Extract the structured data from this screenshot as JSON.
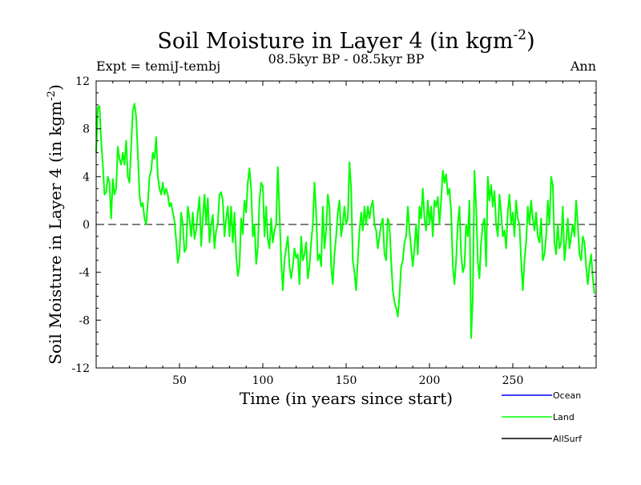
{
  "chart_data": {
    "type": "line",
    "title": "Soil Moisture in Layer 4 (in kgm",
    "title_sup": "-2",
    "title_close": ")",
    "subtitle_left": "Expt = temiJ-tembj",
    "subtitle_center": "08.5kyr BP - 08.5kyr BP",
    "subtitle_right": "Ann",
    "xlabel": "Time (in years since start)",
    "ylabel": "Soil Moisture in Layer 4 (in kgm",
    "ylabel_sup": "-2",
    "ylabel_close": ")",
    "xlim": [
      0,
      300
    ],
    "ylim": [
      -12,
      12
    ],
    "x_ticks": [
      50,
      100,
      150,
      200,
      250
    ],
    "y_ticks": [
      12,
      8,
      4,
      0,
      -4,
      -8,
      -12
    ],
    "zero_line": 0,
    "legend": [
      {
        "name": "Ocean",
        "color": "#0000ff"
      },
      {
        "name": "Land",
        "color": "#00ff00"
      },
      {
        "name": "AllSurf",
        "color": "#000000"
      }
    ],
    "series": [
      {
        "name": "Land",
        "color": "#00ff00",
        "points": [
          [
            0,
            6
          ],
          [
            1,
            9.8
          ],
          [
            2,
            9.9
          ],
          [
            3,
            7
          ],
          [
            4,
            5
          ],
          [
            5,
            2.5
          ],
          [
            6,
            2.7
          ],
          [
            7,
            4
          ],
          [
            8,
            3.5
          ],
          [
            9,
            0.5
          ],
          [
            10,
            3.8
          ],
          [
            11,
            2.5
          ],
          [
            12,
            3
          ],
          [
            13,
            6.5
          ],
          [
            14,
            5.5
          ],
          [
            15,
            5
          ],
          [
            16,
            6
          ],
          [
            17,
            5
          ],
          [
            18,
            7
          ],
          [
            19,
            4
          ],
          [
            20,
            3.5
          ],
          [
            21,
            6.5
          ],
          [
            22,
            9.5
          ],
          [
            23,
            10.1
          ],
          [
            24,
            9
          ],
          [
            25,
            6
          ],
          [
            26,
            2.5
          ],
          [
            27,
            1.5
          ],
          [
            28,
            1.8
          ],
          [
            29,
            0.5
          ],
          [
            30,
            0
          ],
          [
            31,
            1.8
          ],
          [
            32,
            4
          ],
          [
            33,
            4.5
          ],
          [
            34,
            6
          ],
          [
            35,
            5.5
          ],
          [
            36,
            7.3
          ],
          [
            37,
            4
          ],
          [
            38,
            3
          ],
          [
            39,
            2.5
          ],
          [
            40,
            3.5
          ],
          [
            41,
            2.5
          ],
          [
            42,
            3
          ],
          [
            43,
            2.5
          ],
          [
            44,
            1.5
          ],
          [
            45,
            1.8
          ],
          [
            46,
            1
          ],
          [
            47,
            0.3
          ],
          [
            48,
            -1.3
          ],
          [
            49,
            -3.2
          ],
          [
            50,
            -2.5
          ],
          [
            51,
            1
          ],
          [
            52,
            0
          ],
          [
            53,
            -2.3
          ],
          [
            54,
            -2
          ],
          [
            55,
            1.5
          ],
          [
            56,
            0.5
          ],
          [
            57,
            -1
          ],
          [
            58,
            1
          ],
          [
            59,
            -1.2
          ],
          [
            60,
            -0.5
          ],
          [
            61,
            1
          ],
          [
            62,
            2.3
          ],
          [
            63,
            -1.8
          ],
          [
            64,
            0.5
          ],
          [
            65,
            2.5
          ],
          [
            66,
            0
          ],
          [
            67,
            2.2
          ],
          [
            68,
            -1.5
          ],
          [
            69,
            0
          ],
          [
            70,
            0.8
          ],
          [
            71,
            -2
          ],
          [
            72,
            -0.5
          ],
          [
            73,
            0
          ],
          [
            74,
            2.5
          ],
          [
            75,
            2.7
          ],
          [
            76,
            2
          ],
          [
            77,
            -1
          ],
          [
            78,
            0.5
          ],
          [
            79,
            1.5
          ],
          [
            80,
            -1
          ],
          [
            81,
            1.5
          ],
          [
            82,
            -1.5
          ],
          [
            83,
            1
          ],
          [
            84,
            -2.5
          ],
          [
            85,
            -4.3
          ],
          [
            86,
            -3.5
          ],
          [
            87,
            0.5
          ],
          [
            88,
            -0.8
          ],
          [
            89,
            2
          ],
          [
            90,
            1
          ],
          [
            91,
            3.5
          ],
          [
            92,
            4.7
          ],
          [
            93,
            3
          ],
          [
            94,
            -1
          ],
          [
            95,
            0
          ],
          [
            96,
            -3.3
          ],
          [
            97,
            -2
          ],
          [
            98,
            2
          ],
          [
            99,
            3.5
          ],
          [
            100,
            3.2
          ],
          [
            101,
            -1
          ],
          [
            102,
            1.5
          ],
          [
            103,
            -1.2
          ],
          [
            104,
            -2
          ],
          [
            105,
            0.5
          ],
          [
            106,
            -1.5
          ],
          [
            107,
            -0.5
          ],
          [
            108,
            0
          ],
          [
            109,
            4.8
          ],
          [
            110,
            1
          ],
          [
            111,
            -3
          ],
          [
            112,
            -5.5
          ],
          [
            113,
            -3
          ],
          [
            114,
            -2
          ],
          [
            115,
            -1
          ],
          [
            116,
            -3.5
          ],
          [
            117,
            -4.5
          ],
          [
            118,
            -3.5
          ],
          [
            119,
            -2
          ],
          [
            120,
            -2.8
          ],
          [
            121,
            -2.5
          ],
          [
            122,
            -5
          ],
          [
            123,
            -1
          ],
          [
            124,
            -3
          ],
          [
            125,
            -2.5
          ],
          [
            126,
            -1.5
          ],
          [
            127,
            -4.5
          ],
          [
            128,
            -3.5
          ],
          [
            129,
            -1.5
          ],
          [
            130,
            0
          ],
          [
            131,
            3.5
          ],
          [
            132,
            1
          ],
          [
            133,
            -3
          ],
          [
            134,
            -2.5
          ],
          [
            135,
            -3.5
          ],
          [
            136,
            1.5
          ],
          [
            137,
            -2
          ],
          [
            138,
            -0.5
          ],
          [
            139,
            2.5
          ],
          [
            140,
            1.5
          ],
          [
            141,
            -3.5
          ],
          [
            142,
            -5
          ],
          [
            143,
            -2.5
          ],
          [
            144,
            -1
          ],
          [
            145,
            1
          ],
          [
            146,
            2
          ],
          [
            147,
            -1
          ],
          [
            148,
            0
          ],
          [
            149,
            1.5
          ],
          [
            150,
            0
          ],
          [
            151,
            0.5
          ],
          [
            152,
            5.2
          ],
          [
            153,
            3
          ],
          [
            154,
            -3
          ],
          [
            155,
            -4
          ],
          [
            156,
            -5.5
          ],
          [
            157,
            -3
          ],
          [
            158,
            -0.5
          ],
          [
            159,
            1
          ],
          [
            160,
            -0.5
          ],
          [
            161,
            1.5
          ],
          [
            162,
            0
          ],
          [
            163,
            1.5
          ],
          [
            164,
            0.5
          ],
          [
            165,
            1.5
          ],
          [
            166,
            2
          ],
          [
            167,
            0
          ],
          [
            168,
            -0.5
          ],
          [
            169,
            -2
          ],
          [
            170,
            -1
          ],
          [
            171,
            0
          ],
          [
            172,
            0.5
          ],
          [
            173,
            -2.5
          ],
          [
            174,
            -3
          ],
          [
            175,
            0.5
          ],
          [
            176,
            0
          ],
          [
            177,
            -3
          ],
          [
            178,
            -5.5
          ],
          [
            179,
            -6.5
          ],
          [
            180,
            -7
          ],
          [
            181,
            -7.7
          ],
          [
            182,
            -6
          ],
          [
            183,
            -3.5
          ],
          [
            184,
            -3
          ],
          [
            185,
            -1.5
          ],
          [
            186,
            -1
          ],
          [
            187,
            1.5
          ],
          [
            188,
            -0.5
          ],
          [
            189,
            -2
          ],
          [
            190,
            -3.5
          ],
          [
            191,
            -2
          ],
          [
            192,
            0
          ],
          [
            193,
            -2.5
          ],
          [
            194,
            1.5
          ],
          [
            195,
            0.5
          ],
          [
            196,
            3
          ],
          [
            197,
            0.5
          ],
          [
            198,
            -0.5
          ],
          [
            199,
            2
          ],
          [
            200,
            0
          ],
          [
            201,
            1.5
          ],
          [
            202,
            -1
          ],
          [
            203,
            2
          ],
          [
            204,
            1.5
          ],
          [
            205,
            2.3
          ],
          [
            206,
            0
          ],
          [
            207,
            2
          ],
          [
            208,
            4.5
          ],
          [
            209,
            3.5
          ],
          [
            210,
            4.2
          ],
          [
            211,
            2.5
          ],
          [
            212,
            3
          ],
          [
            213,
            1
          ],
          [
            214,
            -3.5
          ],
          [
            215,
            -5
          ],
          [
            216,
            -3
          ],
          [
            217,
            0
          ],
          [
            218,
            1.5
          ],
          [
            219,
            -2.5
          ],
          [
            220,
            -4
          ],
          [
            221,
            -3.5
          ],
          [
            222,
            0
          ],
          [
            223,
            -1
          ],
          [
            224,
            2
          ],
          [
            225,
            -9.5
          ],
          [
            226,
            -6
          ],
          [
            227,
            4.5
          ],
          [
            228,
            1.5
          ],
          [
            229,
            -3
          ],
          [
            230,
            -4.5
          ],
          [
            231,
            -1.5
          ],
          [
            232,
            0
          ],
          [
            233,
            0.5
          ],
          [
            234,
            -3.5
          ],
          [
            235,
            4
          ],
          [
            236,
            2
          ],
          [
            237,
            3.3
          ],
          [
            238,
            1.5
          ],
          [
            239,
            2.8
          ],
          [
            240,
            0
          ],
          [
            241,
            -1
          ],
          [
            242,
            2.5
          ],
          [
            243,
            1
          ],
          [
            244,
            -1
          ],
          [
            245,
            -0.5
          ],
          [
            246,
            -2
          ],
          [
            247,
            1
          ],
          [
            248,
            2.5
          ],
          [
            249,
            0
          ],
          [
            250,
            1
          ],
          [
            251,
            -1
          ],
          [
            252,
            2
          ],
          [
            253,
            0.5
          ],
          [
            254,
            0
          ],
          [
            255,
            -3
          ],
          [
            256,
            -5.5
          ],
          [
            257,
            -3
          ],
          [
            258,
            -1.5
          ],
          [
            259,
            1.5
          ],
          [
            260,
            0
          ],
          [
            261,
            2
          ],
          [
            262,
            0.5
          ],
          [
            263,
            -0.5
          ],
          [
            264,
            1
          ],
          [
            265,
            -1
          ],
          [
            266,
            -1.5
          ],
          [
            267,
            0.5
          ],
          [
            268,
            -3
          ],
          [
            269,
            -2.5
          ],
          [
            270,
            -1
          ],
          [
            271,
            2
          ],
          [
            272,
            0
          ],
          [
            273,
            4
          ],
          [
            274,
            3.3
          ],
          [
            275,
            -1.5
          ],
          [
            276,
            -2.5
          ],
          [
            277,
            0
          ],
          [
            278,
            -2
          ],
          [
            279,
            -1.5
          ],
          [
            280,
            1.5
          ],
          [
            281,
            -3
          ],
          [
            282,
            -1.5
          ],
          [
            283,
            0.5
          ],
          [
            284,
            -2
          ],
          [
            285,
            -1
          ],
          [
            286,
            0
          ],
          [
            287,
            -1
          ],
          [
            288,
            2
          ],
          [
            289,
            0
          ],
          [
            290,
            -2.5
          ],
          [
            291,
            -3
          ],
          [
            292,
            -1
          ],
          [
            293,
            -1.5
          ],
          [
            294,
            -3.5
          ],
          [
            295,
            -5
          ],
          [
            296,
            -3.5
          ],
          [
            297,
            -2.5
          ],
          [
            298,
            -4.5
          ],
          [
            299,
            -5.8
          ]
        ]
      }
    ]
  }
}
